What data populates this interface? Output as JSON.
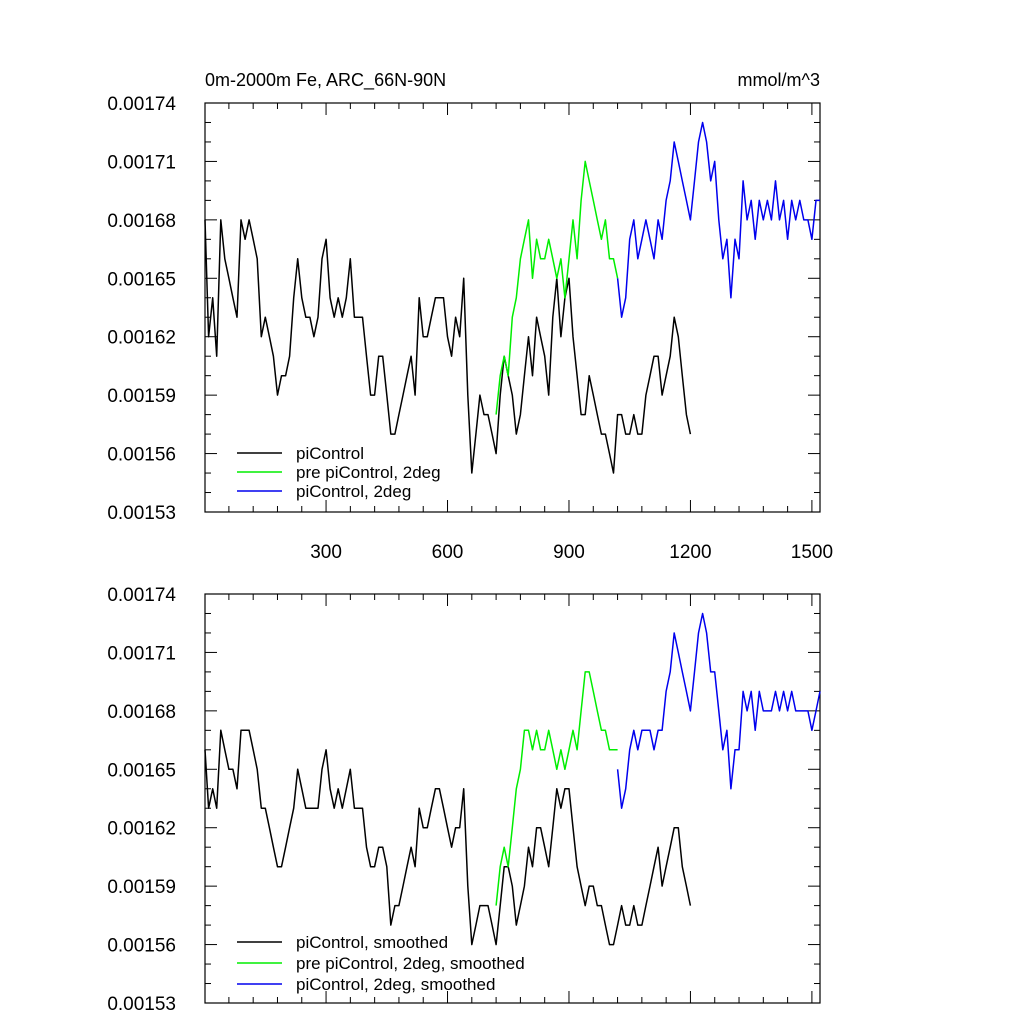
{
  "figure": {
    "title_left": "0m-2000m Fe, ARC_66N-90N",
    "title_right": "mmol/m^3"
  },
  "chart_data": [
    {
      "type": "line",
      "title": "0m-2000m Fe, ARC_66N-90N",
      "units": "mmol/m^3",
      "xlim": [
        1,
        1520
      ],
      "ylim": [
        0.00153,
        0.00174
      ],
      "x_ticks": [
        300,
        600,
        900,
        1200,
        1500
      ],
      "x_tick_labels": [
        "300",
        "600",
        "900",
        "1200",
        "1500"
      ],
      "y_ticks": [
        0.00153,
        0.00156,
        0.00159,
        0.00162,
        0.00165,
        0.00168,
        0.00171,
        0.00174
      ],
      "y_tick_labels": [
        "0.00153",
        "0.00156",
        "0.00159",
        "0.00162",
        "0.00165",
        "0.00168",
        "0.00171",
        "0.00174"
      ],
      "legend_position": "bottom-left",
      "series": [
        {
          "name": "piControl",
          "color": "#000000",
          "x": [
            1,
            10,
            20,
            30,
            40,
            50,
            60,
            70,
            80,
            90,
            100,
            110,
            120,
            130,
            140,
            150,
            160,
            170,
            180,
            190,
            200,
            210,
            220,
            230,
            240,
            250,
            260,
            270,
            280,
            290,
            300,
            310,
            320,
            330,
            340,
            350,
            360,
            370,
            380,
            390,
            400,
            410,
            420,
            430,
            440,
            450,
            460,
            470,
            480,
            490,
            500,
            510,
            520,
            530,
            540,
            550,
            560,
            570,
            580,
            590,
            600,
            610,
            620,
            630,
            640,
            650,
            660,
            670,
            680,
            690,
            700,
            710,
            720,
            730,
            740,
            750,
            760,
            770,
            780,
            790,
            800,
            810,
            820,
            830,
            840,
            850,
            860,
            870,
            880,
            890,
            900,
            910,
            920,
            930,
            940,
            950,
            960,
            970,
            980,
            990,
            1000,
            1010,
            1020,
            1030,
            1040,
            1050,
            1060,
            1070,
            1080,
            1090,
            1100,
            1110,
            1120,
            1130,
            1140,
            1150,
            1160,
            1170,
            1180,
            1190,
            1200
          ],
          "values": [
            0.00168,
            0.00162,
            0.00164,
            0.00161,
            0.00168,
            0.00166,
            0.00165,
            0.00164,
            0.00163,
            0.00168,
            0.00167,
            0.00168,
            0.00167,
            0.00166,
            0.00162,
            0.00163,
            0.00162,
            0.00161,
            0.00159,
            0.0016,
            0.0016,
            0.00161,
            0.00164,
            0.00166,
            0.00164,
            0.00163,
            0.00163,
            0.00162,
            0.00163,
            0.00166,
            0.00167,
            0.00164,
            0.00163,
            0.00164,
            0.00163,
            0.00164,
            0.00166,
            0.00163,
            0.00163,
            0.00163,
            0.00161,
            0.00159,
            0.00159,
            0.00161,
            0.00161,
            0.00159,
            0.00157,
            0.00157,
            0.00158,
            0.00159,
            0.0016,
            0.00161,
            0.00159,
            0.00164,
            0.00162,
            0.00162,
            0.00163,
            0.00164,
            0.00164,
            0.00164,
            0.00162,
            0.00161,
            0.00163,
            0.00162,
            0.00165,
            0.00159,
            0.00155,
            0.00157,
            0.00159,
            0.00158,
            0.00158,
            0.00157,
            0.00156,
            0.00159,
            0.00161,
            0.0016,
            0.00159,
            0.00157,
            0.00158,
            0.0016,
            0.00162,
            0.0016,
            0.00163,
            0.00162,
            0.00161,
            0.00159,
            0.00163,
            0.00165,
            0.00162,
            0.00164,
            0.00165,
            0.00162,
            0.0016,
            0.00158,
            0.00158,
            0.0016,
            0.00159,
            0.00158,
            0.00157,
            0.00157,
            0.00156,
            0.00155,
            0.00158,
            0.00158,
            0.00157,
            0.00157,
            0.00158,
            0.00157,
            0.00157,
            0.00159,
            0.0016,
            0.00161,
            0.00161,
            0.00159,
            0.0016,
            0.00161,
            0.00163,
            0.00162,
            0.0016,
            0.00158,
            0.00157
          ]
        },
        {
          "name": "pre piControl, 2deg",
          "color": "#00ee00",
          "x": [
            720,
            730,
            740,
            750,
            760,
            770,
            780,
            790,
            800,
            810,
            820,
            830,
            840,
            850,
            860,
            870,
            880,
            890,
            900,
            910,
            920,
            930,
            940,
            950,
            960,
            970,
            980,
            990,
            1000,
            1010,
            1020
          ],
          "values": [
            0.00158,
            0.0016,
            0.00161,
            0.0016,
            0.00163,
            0.00164,
            0.00166,
            0.00167,
            0.00168,
            0.00165,
            0.00167,
            0.00166,
            0.00166,
            0.00167,
            0.00166,
            0.00165,
            0.00166,
            0.00164,
            0.00166,
            0.00168,
            0.00166,
            0.00169,
            0.00171,
            0.0017,
            0.00169,
            0.00168,
            0.00167,
            0.00168,
            0.00166,
            0.00166,
            0.00165
          ]
        },
        {
          "name": "piControl, 2deg",
          "color": "#0000ee",
          "x": [
            1020,
            1030,
            1040,
            1050,
            1060,
            1070,
            1080,
            1090,
            1100,
            1110,
            1120,
            1130,
            1140,
            1150,
            1160,
            1170,
            1180,
            1190,
            1200,
            1210,
            1220,
            1230,
            1240,
            1250,
            1260,
            1270,
            1280,
            1290,
            1300,
            1310,
            1320,
            1330,
            1340,
            1350,
            1360,
            1370,
            1380,
            1390,
            1400,
            1410,
            1420,
            1430,
            1440,
            1450,
            1460,
            1470,
            1480,
            1490,
            1500,
            1510,
            1520
          ],
          "values": [
            0.00165,
            0.00163,
            0.00164,
            0.00167,
            0.00168,
            0.00166,
            0.00167,
            0.00168,
            0.00167,
            0.00166,
            0.00168,
            0.00167,
            0.00169,
            0.0017,
            0.00172,
            0.00171,
            0.0017,
            0.00169,
            0.00168,
            0.0017,
            0.00172,
            0.00173,
            0.00172,
            0.0017,
            0.00171,
            0.00168,
            0.00166,
            0.00167,
            0.00164,
            0.00167,
            0.00166,
            0.0017,
            0.00168,
            0.00169,
            0.00167,
            0.00169,
            0.00168,
            0.00169,
            0.00168,
            0.0017,
            0.00168,
            0.00169,
            0.00167,
            0.00169,
            0.00168,
            0.00169,
            0.00168,
            0.00168,
            0.00167,
            0.00169,
            0.00169
          ]
        }
      ]
    },
    {
      "type": "line",
      "xlim": [
        1,
        1520
      ],
      "ylim": [
        0.00153,
        0.00174
      ],
      "x_ticks": [
        300,
        600,
        900,
        1200,
        1500
      ],
      "y_ticks": [
        0.00153,
        0.00156,
        0.00159,
        0.00162,
        0.00165,
        0.00168,
        0.00171,
        0.00174
      ],
      "y_tick_labels": [
        "0.00153",
        "0.00156",
        "0.00159",
        "0.00162",
        "0.00165",
        "0.00168",
        "0.00171",
        "0.00174"
      ],
      "legend_position": "bottom-left",
      "series": [
        {
          "name": "piControl, smoothed",
          "color": "#000000",
          "x": [
            1,
            10,
            20,
            30,
            40,
            50,
            60,
            70,
            80,
            90,
            100,
            110,
            120,
            130,
            140,
            150,
            160,
            170,
            180,
            190,
            200,
            210,
            220,
            230,
            240,
            250,
            260,
            270,
            280,
            290,
            300,
            310,
            320,
            330,
            340,
            350,
            360,
            370,
            380,
            390,
            400,
            410,
            420,
            430,
            440,
            450,
            460,
            470,
            480,
            490,
            500,
            510,
            520,
            530,
            540,
            550,
            560,
            570,
            580,
            590,
            600,
            610,
            620,
            630,
            640,
            650,
            660,
            670,
            680,
            690,
            700,
            710,
            720,
            730,
            740,
            750,
            760,
            770,
            780,
            790,
            800,
            810,
            820,
            830,
            840,
            850,
            860,
            870,
            880,
            890,
            900,
            910,
            920,
            930,
            940,
            950,
            960,
            970,
            980,
            990,
            1000,
            1010,
            1020,
            1030,
            1040,
            1050,
            1060,
            1070,
            1080,
            1090,
            1100,
            1110,
            1120,
            1130,
            1140,
            1150,
            1160,
            1170,
            1180,
            1190,
            1200
          ],
          "values": [
            0.00166,
            0.00163,
            0.00164,
            0.00163,
            0.00167,
            0.00166,
            0.00165,
            0.00165,
            0.00164,
            0.00167,
            0.00167,
            0.00167,
            0.00166,
            0.00165,
            0.00163,
            0.00163,
            0.00162,
            0.00161,
            0.0016,
            0.0016,
            0.00161,
            0.00162,
            0.00163,
            0.00165,
            0.00164,
            0.00163,
            0.00163,
            0.00163,
            0.00163,
            0.00165,
            0.00166,
            0.00164,
            0.00163,
            0.00164,
            0.00163,
            0.00164,
            0.00165,
            0.00163,
            0.00163,
            0.00163,
            0.00161,
            0.0016,
            0.0016,
            0.00161,
            0.00161,
            0.0016,
            0.00157,
            0.00158,
            0.00158,
            0.00159,
            0.0016,
            0.00161,
            0.0016,
            0.00163,
            0.00162,
            0.00162,
            0.00163,
            0.00164,
            0.00164,
            0.00163,
            0.00162,
            0.00161,
            0.00162,
            0.00162,
            0.00164,
            0.00159,
            0.00156,
            0.00157,
            0.00158,
            0.00158,
            0.00158,
            0.00157,
            0.00156,
            0.00158,
            0.0016,
            0.0016,
            0.00159,
            0.00157,
            0.00158,
            0.00159,
            0.00161,
            0.0016,
            0.00162,
            0.00162,
            0.00161,
            0.0016,
            0.00162,
            0.00164,
            0.00163,
            0.00164,
            0.00164,
            0.00162,
            0.0016,
            0.00159,
            0.00158,
            0.00159,
            0.00159,
            0.00158,
            0.00158,
            0.00157,
            0.00156,
            0.00156,
            0.00157,
            0.00158,
            0.00157,
            0.00157,
            0.00158,
            0.00157,
            0.00157,
            0.00158,
            0.00159,
            0.0016,
            0.00161,
            0.00159,
            0.0016,
            0.00161,
            0.00162,
            0.00162,
            0.0016,
            0.00159,
            0.00158
          ]
        },
        {
          "name": "pre piControl, 2deg, smoothed",
          "color": "#00ee00",
          "x": [
            720,
            730,
            740,
            750,
            760,
            770,
            780,
            790,
            800,
            810,
            820,
            830,
            840,
            850,
            860,
            870,
            880,
            890,
            900,
            910,
            920,
            930,
            940,
            950,
            960,
            970,
            980,
            990,
            1000,
            1010,
            1020
          ],
          "values": [
            0.00158,
            0.0016,
            0.00161,
            0.0016,
            0.00162,
            0.00164,
            0.00165,
            0.00167,
            0.00167,
            0.00166,
            0.00167,
            0.00166,
            0.00166,
            0.00167,
            0.00166,
            0.00165,
            0.00166,
            0.00165,
            0.00166,
            0.00167,
            0.00166,
            0.00168,
            0.0017,
            0.0017,
            0.00169,
            0.00168,
            0.00167,
            0.00167,
            0.00166,
            0.00166,
            0.00166
          ]
        },
        {
          "name": "piControl, 2deg, smoothed",
          "color": "#0000ee",
          "x": [
            1020,
            1030,
            1040,
            1050,
            1060,
            1070,
            1080,
            1090,
            1100,
            1110,
            1120,
            1130,
            1140,
            1150,
            1160,
            1170,
            1180,
            1190,
            1200,
            1210,
            1220,
            1230,
            1240,
            1250,
            1260,
            1270,
            1280,
            1290,
            1300,
            1310,
            1320,
            1330,
            1340,
            1350,
            1360,
            1370,
            1380,
            1390,
            1400,
            1410,
            1420,
            1430,
            1440,
            1450,
            1460,
            1470,
            1480,
            1490,
            1500,
            1510,
            1520
          ],
          "values": [
            0.00165,
            0.00163,
            0.00164,
            0.00166,
            0.00167,
            0.00166,
            0.00167,
            0.00167,
            0.00167,
            0.00166,
            0.00167,
            0.00167,
            0.00169,
            0.0017,
            0.00172,
            0.00171,
            0.0017,
            0.00169,
            0.00168,
            0.0017,
            0.00172,
            0.00173,
            0.00172,
            0.0017,
            0.0017,
            0.00168,
            0.00166,
            0.00167,
            0.00164,
            0.00166,
            0.00166,
            0.00169,
            0.00168,
            0.00169,
            0.00167,
            0.00169,
            0.00168,
            0.00168,
            0.00168,
            0.00169,
            0.00168,
            0.00169,
            0.00168,
            0.00169,
            0.00168,
            0.00168,
            0.00168,
            0.00168,
            0.00167,
            0.00168,
            0.00169
          ]
        }
      ]
    }
  ]
}
